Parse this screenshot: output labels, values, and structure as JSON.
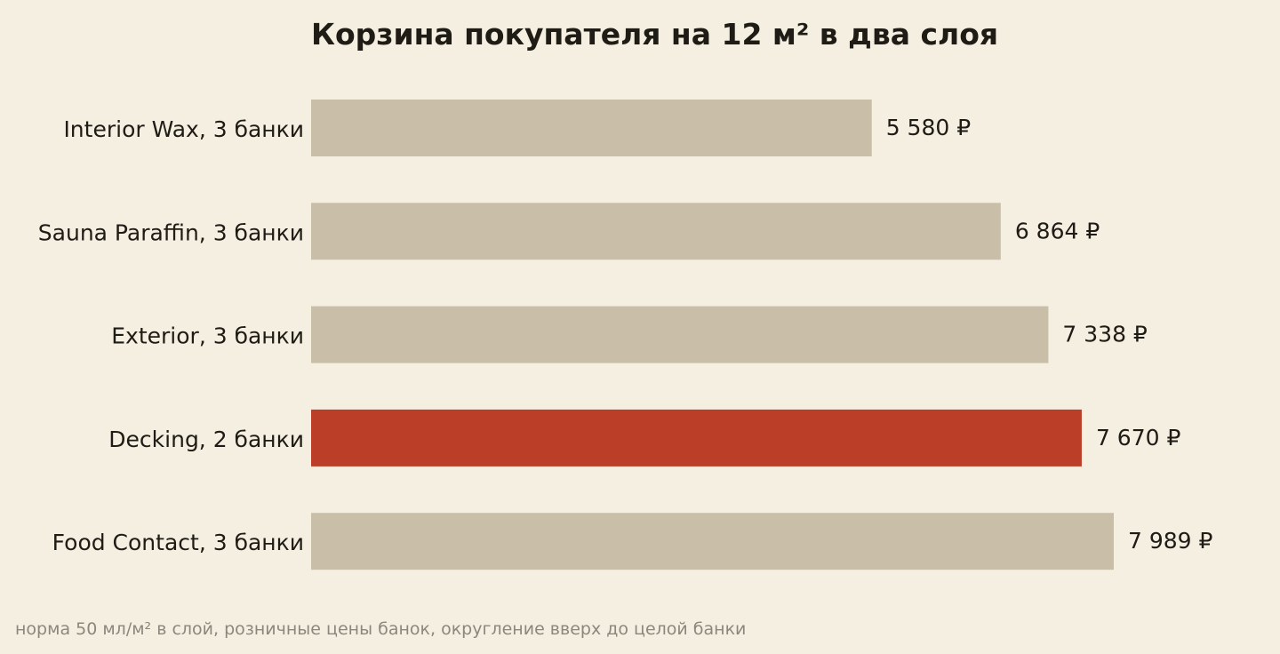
{
  "chart_data": {
    "type": "bar",
    "orientation": "horizontal",
    "title": "Корзина покупателя на 12 м² в два слоя",
    "categories": [
      "Interior Wax, 3 банки",
      "Sauna Paraffin, 3 банки",
      "Exterior, 3 банки",
      "Decking, 2 банки",
      "Food Contact, 3 банки"
    ],
    "values": [
      5580,
      6864,
      7338,
      7670,
      7989
    ],
    "value_labels": [
      "5 580 ₽",
      "6 864 ₽",
      "7 338 ₽",
      "7 670 ₽",
      "7 989 ₽"
    ],
    "highlighted_category": "Decking, 2 банки",
    "xlim": [
      0,
      8000
    ],
    "grid": false,
    "xlabel": "",
    "ylabel": "",
    "colors": {
      "default_bar": "#c9bfa8",
      "highlight_bar": "#bb3e28",
      "background": "#f5efe2",
      "text": "#1f1b15",
      "note": "#8d867c"
    },
    "footnote": "норма 50 мл/м² в слой, розничные цены банок, округление вверх до целой банки"
  }
}
